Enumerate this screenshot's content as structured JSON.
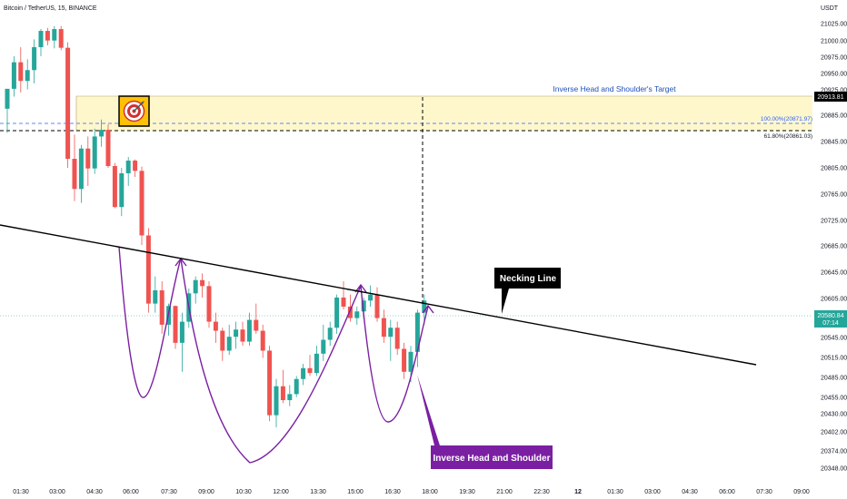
{
  "header": {
    "title": "Bitcoin / TetherUS, 15, BINANCE"
  },
  "chart_data": {
    "type": "candlestick",
    "x_tick_labels": [
      "01:30",
      "03:00",
      "04:30",
      "06:00",
      "07:30",
      "09:00",
      "10:30",
      "12:00",
      "13:30",
      "15:00",
      "16:30",
      "18:00",
      "19:30",
      "21:00",
      "22:30",
      "12",
      "01:30",
      "03:00",
      "04:30",
      "06:00",
      "07:30",
      "09:00"
    ],
    "y_axis_unit": "USDT",
    "y_tick_labels": [
      "21025.00",
      "21000.00",
      "20975.00",
      "20950.00",
      "20925.00",
      "20885.00",
      "20845.00",
      "20805.00",
      "20765.00",
      "20725.00",
      "20685.00",
      "20645.00",
      "20605.00",
      "20545.00",
      "20515.00",
      "20485.00",
      "20455.00",
      "20430.00",
      "20402.00",
      "20374.00",
      "20348.00"
    ],
    "price_label": {
      "price": "20580.84",
      "countdown": "07:14"
    },
    "target_label": "20913.81",
    "colors": {
      "up": "#26a69a",
      "down": "#ef5350",
      "pattern": "#7b1fa2",
      "line": "#000000",
      "target_zone": "#fff7cc",
      "fib": "#2962ff"
    },
    "candles": [
      [
        20898,
        20931,
        20858,
        20931
      ],
      [
        20931,
        20985,
        20918,
        20975
      ],
      [
        20975,
        21000,
        20925,
        20944
      ],
      [
        20944,
        20980,
        20930,
        20962
      ],
      [
        20962,
        21013,
        20940,
        21000
      ],
      [
        21000,
        21030,
        20985,
        21027
      ],
      [
        21027,
        21032,
        21003,
        21011
      ],
      [
        21011,
        21035,
        20998,
        21030
      ],
      [
        21030,
        21035,
        20995,
        20999
      ],
      [
        20999,
        21008,
        20800,
        20815
      ],
      [
        20815,
        20855,
        20745,
        20765
      ],
      [
        20765,
        20838,
        20742,
        20832
      ],
      [
        20832,
        20852,
        20770,
        20799
      ],
      [
        20799,
        20865,
        20790,
        20852
      ],
      [
        20852,
        20880,
        20835,
        20863
      ],
      [
        20863,
        20872,
        20800,
        20803
      ],
      [
        20803,
        20808,
        20733,
        20735
      ],
      [
        20735,
        20800,
        20720,
        20791
      ],
      [
        20791,
        20818,
        20770,
        20812
      ],
      [
        20812,
        20814,
        20785,
        20795
      ],
      [
        20795,
        20802,
        20672,
        20688
      ],
      [
        20688,
        20700,
        20560,
        20575
      ],
      [
        20575,
        20620,
        20560,
        20597
      ],
      [
        20597,
        20612,
        20525,
        20540
      ],
      [
        20540,
        20575,
        20522,
        20571
      ],
      [
        20571,
        20572,
        20500,
        20510
      ],
      [
        20510,
        20560,
        20462,
        20545
      ],
      [
        20545,
        20600,
        20535,
        20592
      ],
      [
        20592,
        20620,
        20575,
        20614
      ],
      [
        20614,
        20625,
        20585,
        20604
      ],
      [
        20604,
        20612,
        20535,
        20545
      ],
      [
        20545,
        20560,
        20510,
        20530
      ],
      [
        20530,
        20535,
        20480,
        20497
      ],
      [
        20497,
        20540,
        20490,
        20520
      ],
      [
        20520,
        20545,
        20500,
        20532
      ],
      [
        20532,
        20545,
        20505,
        20512
      ],
      [
        20512,
        20560,
        20505,
        20548
      ],
      [
        20548,
        20575,
        20525,
        20530
      ],
      [
        20530,
        20540,
        20485,
        20497
      ],
      [
        20497,
        20505,
        20380,
        20390
      ],
      [
        20390,
        20450,
        20370,
        20438
      ],
      [
        20438,
        20465,
        20410,
        20415
      ],
      [
        20415,
        20440,
        20405,
        20425
      ],
      [
        20425,
        20455,
        20420,
        20450
      ],
      [
        20450,
        20475,
        20440,
        20468
      ],
      [
        20468,
        20490,
        20455,
        20460
      ],
      [
        20460,
        20505,
        20455,
        20492
      ],
      [
        20492,
        20540,
        20480,
        20515
      ],
      [
        20515,
        20545,
        20505,
        20535
      ],
      [
        20535,
        20590,
        20525,
        20585
      ],
      [
        20585,
        20612,
        20565,
        20570
      ],
      [
        20570,
        20590,
        20545,
        20551
      ],
      [
        20551,
        20570,
        20540,
        20562
      ],
      [
        20562,
        20585,
        20550,
        20580
      ],
      [
        20580,
        20605,
        20570,
        20590
      ],
      [
        20590,
        20602,
        20545,
        20551
      ],
      [
        20551,
        20565,
        20510,
        20520
      ],
      [
        20520,
        20548,
        20480,
        20535
      ],
      [
        20535,
        20545,
        20490,
        20500
      ],
      [
        20500,
        20510,
        20450,
        20462
      ],
      [
        20462,
        20505,
        20445,
        20495
      ],
      [
        20495,
        20565,
        20470,
        20560
      ],
      [
        20560,
        20590,
        20540,
        20580
      ]
    ]
  }
}
